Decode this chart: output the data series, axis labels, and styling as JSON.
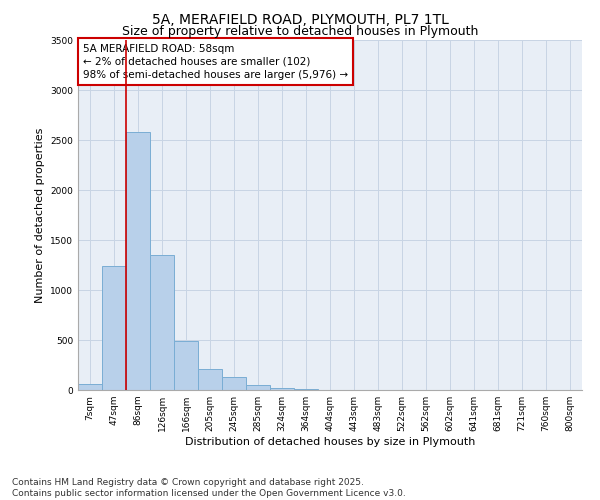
{
  "title1": "5A, MERAFIELD ROAD, PLYMOUTH, PL7 1TL",
  "title2": "Size of property relative to detached houses in Plymouth",
  "xlabel": "Distribution of detached houses by size in Plymouth",
  "ylabel": "Number of detached properties",
  "bar_categories": [
    "7sqm",
    "47sqm",
    "86sqm",
    "126sqm",
    "166sqm",
    "205sqm",
    "245sqm",
    "285sqm",
    "324sqm",
    "364sqm",
    "404sqm",
    "443sqm",
    "483sqm",
    "522sqm",
    "562sqm",
    "602sqm",
    "641sqm",
    "681sqm",
    "721sqm",
    "760sqm",
    "800sqm"
  ],
  "bar_values": [
    60,
    1240,
    2580,
    1350,
    490,
    215,
    130,
    55,
    25,
    8,
    3,
    1,
    0,
    0,
    0,
    0,
    0,
    0,
    0,
    0,
    0
  ],
  "bar_color": "#b8d0ea",
  "bar_edge_color": "#7aadd4",
  "grid_color": "#c8d4e4",
  "background_color": "#e8eef6",
  "red_line_color": "#cc0000",
  "annotation_box_color": "#cc0000",
  "annotation_text_line1": "5A MERAFIELD ROAD: 58sqm",
  "annotation_text_line2": "← 2% of detached houses are smaller (102)",
  "annotation_text_line3": "98% of semi-detached houses are larger (5,976) →",
  "red_line_x": 1.5,
  "ylim": [
    0,
    3500
  ],
  "yticks": [
    0,
    500,
    1000,
    1500,
    2000,
    2500,
    3000,
    3500
  ],
  "footer1": "Contains HM Land Registry data © Crown copyright and database right 2025.",
  "footer2": "Contains public sector information licensed under the Open Government Licence v3.0.",
  "title_fontsize": 10,
  "subtitle_fontsize": 9,
  "axis_label_fontsize": 8,
  "tick_fontsize": 6.5,
  "annotation_fontsize": 7.5,
  "footer_fontsize": 6.5
}
